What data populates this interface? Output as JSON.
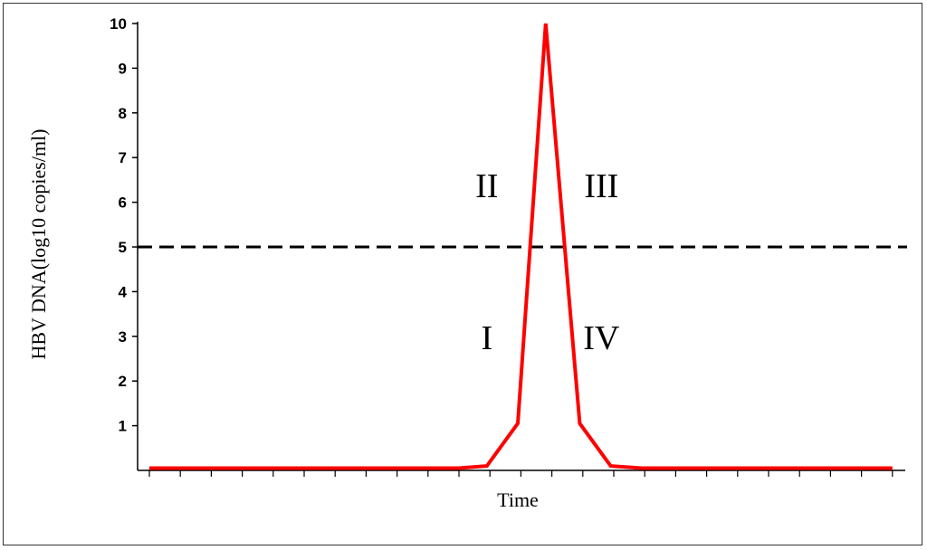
{
  "chart_data": {
    "type": "line",
    "xlabel": "Time",
    "ylabel": "HBV DNA(log10 copies/ml)",
    "y_ticks": [
      "1",
      "2",
      "3",
      "4",
      "5",
      "6",
      "7",
      "8",
      "9",
      "10"
    ],
    "ylim": [
      0,
      10
    ],
    "x_positions": 25,
    "series": [
      {
        "color": "#ff0000",
        "points": [
          [
            0,
            0.05
          ],
          [
            10,
            0.05
          ],
          [
            10.9,
            0.1
          ],
          [
            11.9,
            1.05
          ],
          [
            12.8,
            10
          ],
          [
            13.9,
            1.05
          ],
          [
            14.9,
            0.1
          ],
          [
            15.9,
            0.05
          ],
          [
            24,
            0.05
          ]
        ]
      }
    ],
    "threshold": {
      "y": 5,
      "style": "dashed",
      "color": "#000000"
    },
    "phase_labels": [
      {
        "text": "I",
        "x": 10.9,
        "y": 3
      },
      {
        "text": "II",
        "x": 10.9,
        "y": 6.4
      },
      {
        "text": "III",
        "x": 14.6,
        "y": 6.4
      },
      {
        "text": "IV",
        "x": 14.6,
        "y": 3
      }
    ],
    "grid": false,
    "legend": "none"
  }
}
